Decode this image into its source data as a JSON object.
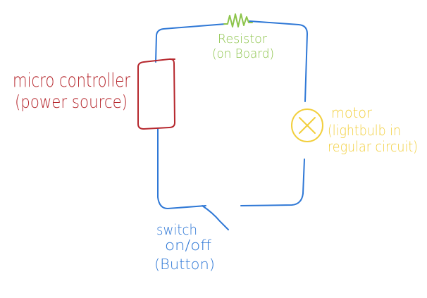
{
  "diagram": {
    "labels": {
      "microcontroller_line1": "micro controller",
      "microcontroller_line2": "(power source)",
      "resistor_line1": "Resistor",
      "resistor_line2": "(on Board)",
      "motor_line1": "motor",
      "motor_line2": "(lightbulb in",
      "motor_line3": "regular circuit)",
      "switch_line1": "switch",
      "switch_line2": "on/off",
      "switch_line3": "(Button)"
    },
    "colors": {
      "wire": "#2f78d6",
      "microcontroller": "#b6282e",
      "resistor": "#8cc44a",
      "motor": "#f2cf3d",
      "switch": "#2f78d6",
      "background": "#ffffff"
    },
    "icons": {
      "resistor": "resistor-zigzag-icon",
      "motor": "circled-x-lamp-icon",
      "switch": "open-switch-icon"
    }
  }
}
